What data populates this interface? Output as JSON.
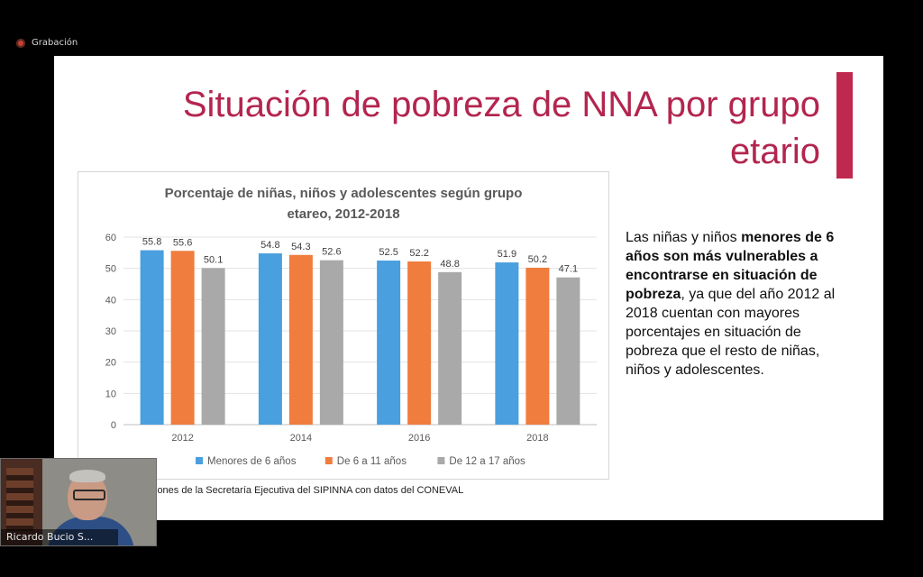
{
  "recording": {
    "label": "Grabación"
  },
  "slide": {
    "title": "Situación de pobreza de NNA por grupo etario",
    "accent_color": "#c0294f",
    "side_text": {
      "part1": "Las niñas y niños ",
      "bold": "menores de 6 años son más vulnerables a encontrarse en situación de pobreza",
      "part2": ", ya que del año 2012 al 2018 cuentan con mayores porcentajes en situación de pobreza que el resto de niñas, niños y adolescentes."
    },
    "source": "iones de la Secretaría Ejecutiva del SIPINNA con datos del CONEVAL"
  },
  "chart_data": {
    "type": "bar",
    "title_line1": "Porcentaje de niñas, niños y adolescentes según grupo",
    "title_line2": "etareo, 2012-2018",
    "categories": [
      "2012",
      "2014",
      "2016",
      "2018"
    ],
    "series": [
      {
        "name": "Menores de 6 años",
        "color": "#4a9fde",
        "values": [
          55.8,
          54.8,
          52.5,
          51.9
        ]
      },
      {
        "name": "De 6 a 11 años",
        "color": "#f07c3e",
        "values": [
          55.6,
          54.3,
          52.2,
          50.2
        ]
      },
      {
        "name": "De 12 a 17 años",
        "color": "#a9a9a9",
        "values": [
          50.1,
          52.6,
          48.8,
          47.1
        ]
      }
    ],
    "ylim": [
      0,
      60
    ],
    "yticks": [
      0,
      10,
      20,
      30,
      40,
      50,
      60
    ],
    "grid": true,
    "legend": "bottom"
  },
  "webcam": {
    "name": "Ricardo Bucio S..."
  }
}
